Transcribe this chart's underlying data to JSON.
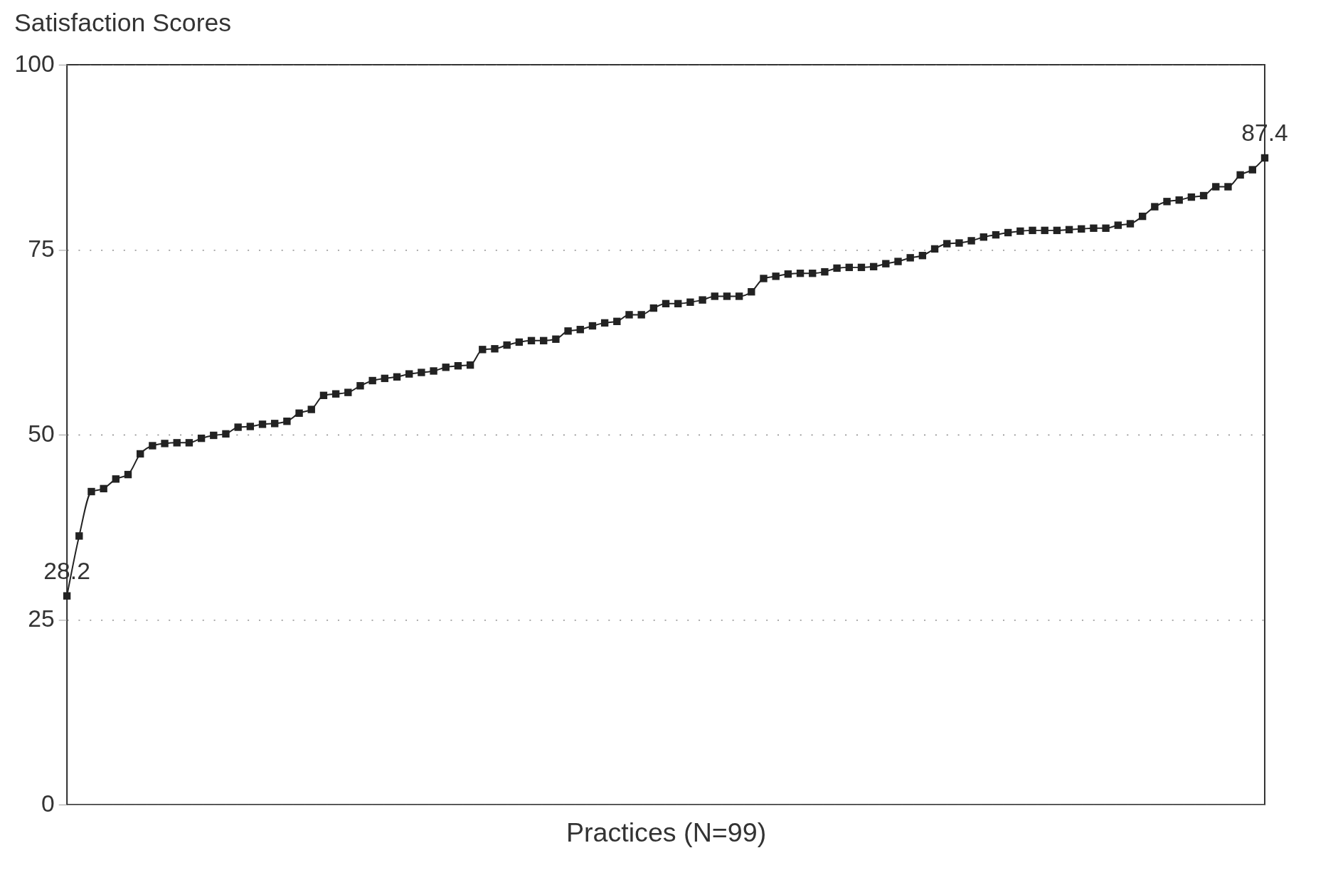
{
  "chart_data": {
    "type": "line",
    "title": "Satisfaction Scores",
    "xlabel": "Practices (N=99)",
    "categories": [
      null,
      null,
      null,
      null,
      null,
      null,
      null,
      null,
      null,
      null,
      null,
      null,
      null,
      null,
      null,
      null,
      null,
      null,
      null,
      null,
      null,
      null,
      null,
      null,
      null,
      null,
      null,
      null,
      null,
      null,
      null,
      null,
      null,
      null,
      null,
      null,
      null,
      null,
      null,
      null,
      null,
      null,
      null,
      null,
      null,
      null,
      null,
      null,
      null,
      null,
      null,
      null,
      null,
      null,
      null,
      null,
      null,
      null,
      null,
      null,
      null,
      null,
      null,
      null,
      null,
      null,
      null,
      null,
      null,
      null,
      null,
      null,
      null,
      null,
      null,
      null,
      null,
      null,
      null,
      null,
      null,
      null,
      null,
      null,
      null,
      null,
      null,
      null,
      null,
      null,
      null,
      null,
      null,
      null,
      null,
      null,
      null,
      null,
      null
    ],
    "series": [
      {
        "color": "#222222",
        "values": [
          28.2,
          36.3,
          42.3,
          42.7,
          44.0,
          44.6,
          47.4,
          48.5,
          48.8,
          48.9,
          48.9,
          49.5,
          49.9,
          50.1,
          51.0,
          51.1,
          51.4,
          51.5,
          51.8,
          52.9,
          53.4,
          55.3,
          55.5,
          55.7,
          56.6,
          57.3,
          57.6,
          57.8,
          58.2,
          58.4,
          58.6,
          59.1,
          59.3,
          59.4,
          61.5,
          61.6,
          62.1,
          62.5,
          62.7,
          62.7,
          62.9,
          64.0,
          64.2,
          64.7,
          65.1,
          65.3,
          66.2,
          66.2,
          67.1,
          67.7,
          67.7,
          67.9,
          68.2,
          68.7,
          68.7,
          68.7,
          69.3,
          71.1,
          71.4,
          71.7,
          71.8,
          71.8,
          72.0,
          72.5,
          72.6,
          72.6,
          72.7,
          73.1,
          73.4,
          73.9,
          74.2,
          75.1,
          75.8,
          75.9,
          76.2,
          76.7,
          77.0,
          77.3,
          77.5,
          77.6,
          77.6,
          77.6,
          77.7,
          77.8,
          77.9,
          77.9,
          78.3,
          78.5,
          79.5,
          80.8,
          81.5,
          81.7,
          82.1,
          82.3,
          83.5,
          83.5,
          85.1,
          85.8,
          87.4
        ]
      }
    ],
    "ylim": [
      0,
      100
    ],
    "yticks": [
      0,
      25,
      50,
      75,
      100
    ],
    "grid": "y",
    "marker": "square",
    "line_style": "solid",
    "annotations": [
      {
        "text": "28.2",
        "y": 28.2
      },
      {
        "text": "87.4",
        "y": 87.4
      }
    ]
  }
}
